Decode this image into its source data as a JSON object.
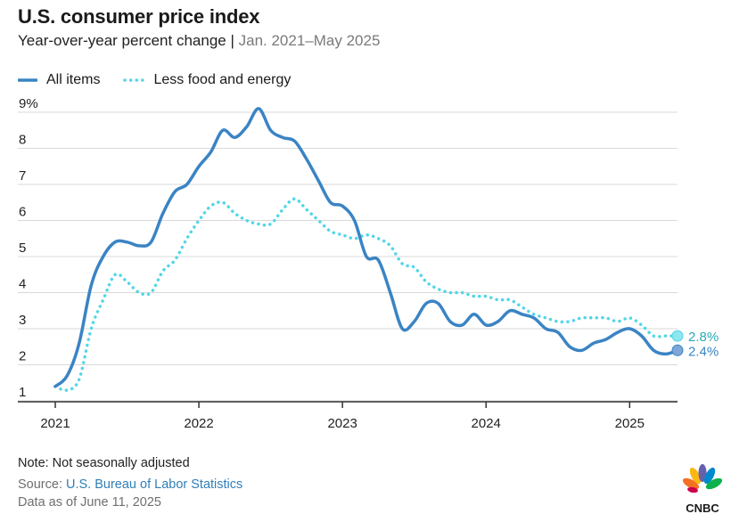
{
  "header": {
    "title": "U.S. consumer price index",
    "subtitle": "Year-over-year percent change",
    "separator": " | ",
    "range": "Jan. 2021–May 2025"
  },
  "footer": {
    "note": "Note: Not seasonally adjusted",
    "source_prefix": "Source: ",
    "source_link": "U.S. Bureau of Labor Statistics",
    "as_of": "Data as of June 11, 2025"
  },
  "logo": {
    "text": "CNBC",
    "icon": "nbc-peacock-icon"
  },
  "colors": {
    "all_items": "#3a84c4",
    "core": "#52d6e6",
    "grid": "#d9d9d9",
    "axis": "#333333"
  },
  "chart_data": {
    "type": "line",
    "title": "U.S. consumer price index",
    "subtitle": "Year-over-year percent change | Jan. 2021–May 2025",
    "xlabel": "",
    "ylabel": "",
    "ylim": [
      1,
      9
    ],
    "yticks": [
      "9%",
      "8",
      "7",
      "6",
      "5",
      "4",
      "3",
      "2",
      "1"
    ],
    "xticks": [
      "2021",
      "2022",
      "2023",
      "2024",
      "2025"
    ],
    "grid": true,
    "legend_position": "top-left",
    "x": [
      "2021-01",
      "2021-02",
      "2021-03",
      "2021-04",
      "2021-05",
      "2021-06",
      "2021-07",
      "2021-08",
      "2021-09",
      "2021-10",
      "2021-11",
      "2021-12",
      "2022-01",
      "2022-02",
      "2022-03",
      "2022-04",
      "2022-05",
      "2022-06",
      "2022-07",
      "2022-08",
      "2022-09",
      "2022-10",
      "2022-11",
      "2022-12",
      "2023-01",
      "2023-02",
      "2023-03",
      "2023-04",
      "2023-05",
      "2023-06",
      "2023-07",
      "2023-08",
      "2023-09",
      "2023-10",
      "2023-11",
      "2023-12",
      "2024-01",
      "2024-02",
      "2024-03",
      "2024-04",
      "2024-05",
      "2024-06",
      "2024-07",
      "2024-08",
      "2024-09",
      "2024-10",
      "2024-11",
      "2024-12",
      "2025-01",
      "2025-02",
      "2025-03",
      "2025-04",
      "2025-05"
    ],
    "series": [
      {
        "name": "All items",
        "style": "solid",
        "values": [
          1.4,
          1.7,
          2.6,
          4.2,
          5.0,
          5.4,
          5.4,
          5.3,
          5.4,
          6.2,
          6.8,
          7.0,
          7.5,
          7.9,
          8.5,
          8.3,
          8.6,
          9.1,
          8.5,
          8.3,
          8.2,
          7.7,
          7.1,
          6.5,
          6.4,
          6.0,
          5.0,
          4.9,
          4.0,
          3.0,
          3.2,
          3.7,
          3.7,
          3.2,
          3.1,
          3.4,
          3.1,
          3.2,
          3.5,
          3.4,
          3.3,
          3.0,
          2.9,
          2.5,
          2.4,
          2.6,
          2.7,
          2.9,
          3.0,
          2.8,
          2.4,
          2.3,
          2.4
        ],
        "end_label": "2.4%"
      },
      {
        "name": "Less food and energy",
        "style": "dotted",
        "values": [
          1.4,
          1.3,
          1.6,
          3.0,
          3.8,
          4.5,
          4.3,
          4.0,
          4.0,
          4.6,
          4.9,
          5.5,
          6.0,
          6.4,
          6.5,
          6.2,
          6.0,
          5.9,
          5.9,
          6.3,
          6.6,
          6.3,
          6.0,
          5.7,
          5.6,
          5.5,
          5.6,
          5.5,
          5.3,
          4.8,
          4.7,
          4.3,
          4.1,
          4.0,
          4.0,
          3.9,
          3.9,
          3.8,
          3.8,
          3.6,
          3.4,
          3.3,
          3.2,
          3.2,
          3.3,
          3.3,
          3.3,
          3.2,
          3.3,
          3.1,
          2.8,
          2.8,
          2.8
        ],
        "end_label": "2.8%"
      }
    ]
  }
}
